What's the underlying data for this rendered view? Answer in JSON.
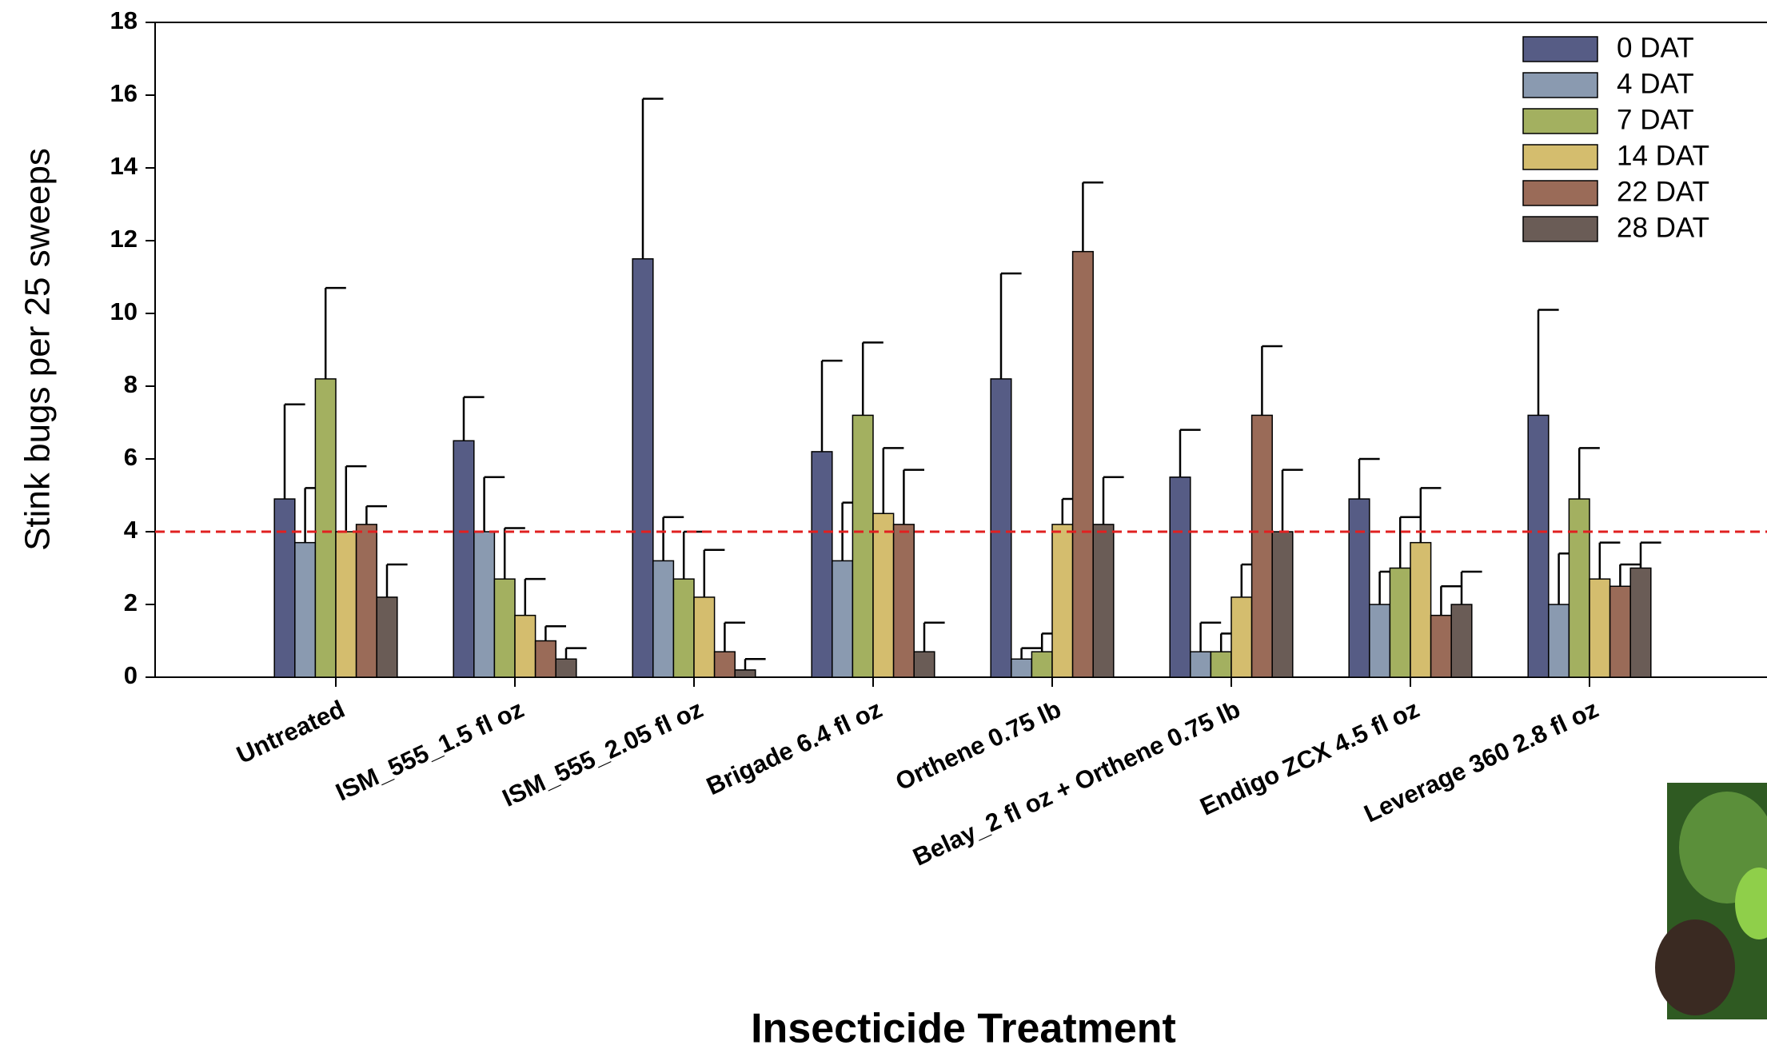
{
  "chart_data": {
    "type": "bar",
    "y_label": "Stink bugs per 25 sweeps",
    "x_label": "Insecticide Treatment",
    "categories": [
      "Untreated",
      "ISM_555_1.5 fl oz",
      "ISM_555_2.05 fl oz",
      "Brigade 6.4 fl oz",
      "Orthene 0.75 lb",
      "Belay_2 fl oz + Orthene 0.75 lb",
      "Endigo ZCX 4.5 fl oz",
      "Leverage 360 2.8 fl oz"
    ],
    "series": [
      {
        "name": "0 DAT",
        "color": "#565c85",
        "values": [
          4.9,
          6.5,
          11.5,
          6.2,
          8.2,
          5.5,
          4.9,
          7.2
        ],
        "errors": [
          2.6,
          1.2,
          4.4,
          2.5,
          2.9,
          1.3,
          1.1,
          2.9
        ]
      },
      {
        "name": "4 DAT",
        "color": "#8a9ab0",
        "values": [
          3.7,
          4.0,
          3.2,
          3.2,
          0.5,
          0.7,
          2.0,
          2.0
        ],
        "errors": [
          1.5,
          1.5,
          1.2,
          1.6,
          0.3,
          0.8,
          0.9,
          1.4
        ]
      },
      {
        "name": "7 DAT",
        "color": "#a3b060",
        "values": [
          8.2,
          2.7,
          2.7,
          7.2,
          0.7,
          0.7,
          3.0,
          4.9
        ],
        "errors": [
          2.5,
          1.4,
          1.3,
          2.0,
          0.5,
          0.5,
          1.4,
          1.4
        ]
      },
      {
        "name": "14 DAT",
        "color": "#d4bd6e",
        "values": [
          4.0,
          1.7,
          2.2,
          4.5,
          4.2,
          2.2,
          3.7,
          2.7
        ],
        "errors": [
          1.8,
          1.0,
          1.3,
          1.8,
          0.7,
          0.9,
          1.5,
          1.0
        ]
      },
      {
        "name": "22 DAT",
        "color": "#9a6b58",
        "values": [
          4.2,
          1.0,
          0.7,
          4.2,
          11.7,
          7.2,
          1.7,
          2.5
        ],
        "errors": [
          0.5,
          0.4,
          0.8,
          1.5,
          1.9,
          1.9,
          0.8,
          0.6
        ]
      },
      {
        "name": "28 DAT",
        "color": "#6a5c56",
        "values": [
          2.2,
          0.5,
          0.2,
          0.7,
          4.2,
          4.0,
          2.0,
          3.0
        ],
        "errors": [
          0.9,
          0.3,
          0.3,
          0.8,
          1.3,
          1.7,
          0.9,
          0.7
        ]
      }
    ],
    "ylim": [
      0,
      18
    ],
    "yticks": [
      0,
      2,
      4,
      6,
      8,
      10,
      12,
      14,
      16,
      18
    ],
    "reference_line": {
      "value": 4,
      "color": "#e02020"
    },
    "legend": "top-right"
  }
}
